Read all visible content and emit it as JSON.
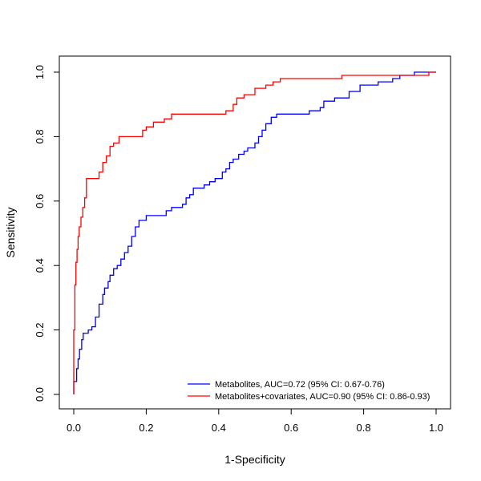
{
  "chart_data": {
    "type": "line",
    "title": "",
    "xlabel": "1-Specificity",
    "ylabel": "Sensitivity",
    "xlim": [
      0,
      1
    ],
    "ylim": [
      0,
      1
    ],
    "x_ticks": [
      "0.0",
      "0.2",
      "0.4",
      "0.6",
      "0.8",
      "1.0"
    ],
    "y_ticks": [
      "0.0",
      "0.2",
      "0.4",
      "0.6",
      "0.8",
      "1.0"
    ],
    "grid": false,
    "legend_position": "bottom-right",
    "series": [
      {
        "name": "Metabolites, AUC=0.72 (95% CI: 0.67-0.76)",
        "color": "#0000FF",
        "points": [
          [
            0.0,
            0.0
          ],
          [
            0.0,
            0.04
          ],
          [
            0.008,
            0.04
          ],
          [
            0.008,
            0.08
          ],
          [
            0.012,
            0.08
          ],
          [
            0.012,
            0.11
          ],
          [
            0.016,
            0.11
          ],
          [
            0.016,
            0.14
          ],
          [
            0.022,
            0.14
          ],
          [
            0.022,
            0.17
          ],
          [
            0.026,
            0.17
          ],
          [
            0.026,
            0.19
          ],
          [
            0.04,
            0.19
          ],
          [
            0.04,
            0.2
          ],
          [
            0.05,
            0.2
          ],
          [
            0.05,
            0.21
          ],
          [
            0.06,
            0.21
          ],
          [
            0.06,
            0.24
          ],
          [
            0.07,
            0.24
          ],
          [
            0.07,
            0.28
          ],
          [
            0.08,
            0.28
          ],
          [
            0.08,
            0.31
          ],
          [
            0.085,
            0.31
          ],
          [
            0.085,
            0.33
          ],
          [
            0.095,
            0.33
          ],
          [
            0.095,
            0.35
          ],
          [
            0.1,
            0.35
          ],
          [
            0.1,
            0.37
          ],
          [
            0.11,
            0.37
          ],
          [
            0.11,
            0.39
          ],
          [
            0.12,
            0.39
          ],
          [
            0.12,
            0.4
          ],
          [
            0.13,
            0.4
          ],
          [
            0.13,
            0.42
          ],
          [
            0.14,
            0.42
          ],
          [
            0.14,
            0.44
          ],
          [
            0.15,
            0.44
          ],
          [
            0.15,
            0.46
          ],
          [
            0.16,
            0.46
          ],
          [
            0.16,
            0.49
          ],
          [
            0.17,
            0.49
          ],
          [
            0.17,
            0.52
          ],
          [
            0.18,
            0.52
          ],
          [
            0.18,
            0.54
          ],
          [
            0.2,
            0.54
          ],
          [
            0.2,
            0.555
          ],
          [
            0.23,
            0.555
          ],
          [
            0.255,
            0.555
          ],
          [
            0.255,
            0.57
          ],
          [
            0.27,
            0.57
          ],
          [
            0.27,
            0.58
          ],
          [
            0.3,
            0.58
          ],
          [
            0.3,
            0.59
          ],
          [
            0.31,
            0.59
          ],
          [
            0.31,
            0.61
          ],
          [
            0.32,
            0.61
          ],
          [
            0.32,
            0.62
          ],
          [
            0.33,
            0.62
          ],
          [
            0.33,
            0.64
          ],
          [
            0.36,
            0.64
          ],
          [
            0.36,
            0.65
          ],
          [
            0.375,
            0.65
          ],
          [
            0.375,
            0.66
          ],
          [
            0.39,
            0.66
          ],
          [
            0.39,
            0.67
          ],
          [
            0.41,
            0.67
          ],
          [
            0.41,
            0.69
          ],
          [
            0.42,
            0.69
          ],
          [
            0.42,
            0.7
          ],
          [
            0.43,
            0.7
          ],
          [
            0.43,
            0.72
          ],
          [
            0.44,
            0.72
          ],
          [
            0.44,
            0.73
          ],
          [
            0.455,
            0.73
          ],
          [
            0.455,
            0.745
          ],
          [
            0.47,
            0.745
          ],
          [
            0.47,
            0.755
          ],
          [
            0.48,
            0.755
          ],
          [
            0.48,
            0.765
          ],
          [
            0.5,
            0.765
          ],
          [
            0.5,
            0.78
          ],
          [
            0.51,
            0.78
          ],
          [
            0.51,
            0.8
          ],
          [
            0.52,
            0.8
          ],
          [
            0.52,
            0.82
          ],
          [
            0.53,
            0.82
          ],
          [
            0.53,
            0.84
          ],
          [
            0.545,
            0.84
          ],
          [
            0.545,
            0.86
          ],
          [
            0.56,
            0.86
          ],
          [
            0.56,
            0.87
          ],
          [
            0.65,
            0.87
          ],
          [
            0.65,
            0.88
          ],
          [
            0.68,
            0.88
          ],
          [
            0.68,
            0.89
          ],
          [
            0.69,
            0.89
          ],
          [
            0.69,
            0.91
          ],
          [
            0.72,
            0.91
          ],
          [
            0.72,
            0.92
          ],
          [
            0.76,
            0.92
          ],
          [
            0.76,
            0.94
          ],
          [
            0.79,
            0.94
          ],
          [
            0.79,
            0.96
          ],
          [
            0.84,
            0.96
          ],
          [
            0.84,
            0.97
          ],
          [
            0.88,
            0.97
          ],
          [
            0.88,
            0.98
          ],
          [
            0.9,
            0.98
          ],
          [
            0.9,
            0.99
          ],
          [
            0.94,
            0.99
          ],
          [
            0.94,
            1.0
          ],
          [
            1.0,
            1.0
          ]
        ]
      },
      {
        "name": "Metabolites+covariates, AUC=0.90 (95% CI: 0.86-0.93)",
        "color": "#FF0000",
        "points": [
          [
            0.0,
            0.0
          ],
          [
            0.0,
            0.2
          ],
          [
            0.003,
            0.2
          ],
          [
            0.003,
            0.34
          ],
          [
            0.006,
            0.34
          ],
          [
            0.006,
            0.41
          ],
          [
            0.009,
            0.41
          ],
          [
            0.009,
            0.45
          ],
          [
            0.012,
            0.45
          ],
          [
            0.012,
            0.49
          ],
          [
            0.015,
            0.49
          ],
          [
            0.015,
            0.52
          ],
          [
            0.02,
            0.52
          ],
          [
            0.02,
            0.55
          ],
          [
            0.025,
            0.55
          ],
          [
            0.025,
            0.58
          ],
          [
            0.03,
            0.58
          ],
          [
            0.03,
            0.61
          ],
          [
            0.035,
            0.61
          ],
          [
            0.035,
            0.67
          ],
          [
            0.07,
            0.67
          ],
          [
            0.07,
            0.69
          ],
          [
            0.08,
            0.69
          ],
          [
            0.08,
            0.72
          ],
          [
            0.09,
            0.72
          ],
          [
            0.09,
            0.74
          ],
          [
            0.1,
            0.74
          ],
          [
            0.1,
            0.77
          ],
          [
            0.11,
            0.77
          ],
          [
            0.11,
            0.78
          ],
          [
            0.125,
            0.78
          ],
          [
            0.125,
            0.8
          ],
          [
            0.19,
            0.8
          ],
          [
            0.19,
            0.82
          ],
          [
            0.2,
            0.82
          ],
          [
            0.2,
            0.83
          ],
          [
            0.22,
            0.83
          ],
          [
            0.22,
            0.845
          ],
          [
            0.25,
            0.845
          ],
          [
            0.25,
            0.855
          ],
          [
            0.27,
            0.855
          ],
          [
            0.27,
            0.87
          ],
          [
            0.42,
            0.87
          ],
          [
            0.42,
            0.88
          ],
          [
            0.44,
            0.88
          ],
          [
            0.44,
            0.9
          ],
          [
            0.45,
            0.9
          ],
          [
            0.45,
            0.92
          ],
          [
            0.47,
            0.92
          ],
          [
            0.47,
            0.93
          ],
          [
            0.5,
            0.93
          ],
          [
            0.5,
            0.95
          ],
          [
            0.53,
            0.95
          ],
          [
            0.53,
            0.96
          ],
          [
            0.55,
            0.96
          ],
          [
            0.55,
            0.97
          ],
          [
            0.57,
            0.97
          ],
          [
            0.57,
            0.98
          ],
          [
            0.74,
            0.98
          ],
          [
            0.74,
            0.99
          ],
          [
            0.98,
            0.99
          ],
          [
            0.98,
            1.0
          ],
          [
            1.0,
            1.0
          ]
        ]
      }
    ]
  }
}
